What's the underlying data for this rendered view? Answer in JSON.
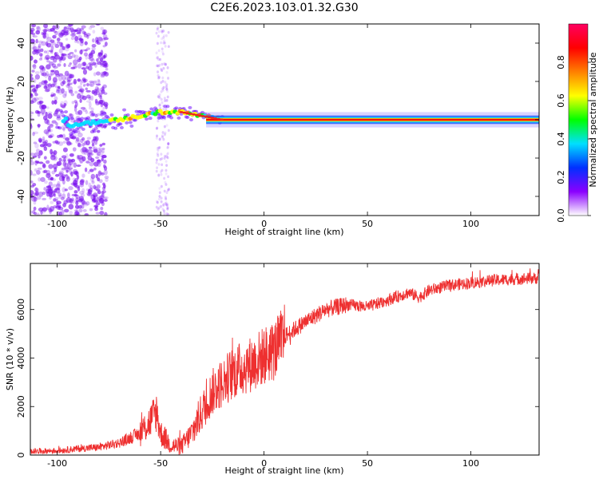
{
  "title": "C2E6.2023.103.01.32.G30",
  "chart_data": [
    {
      "type": "heatmap",
      "xlabel": "Height of straight line (km)",
      "ylabel": "Frequency (Hz)",
      "xlim": [
        -113,
        133
      ],
      "ylim": [
        -50,
        50
      ],
      "xticks": [
        -100,
        -50,
        0,
        50,
        100
      ],
      "yticks": [
        -40,
        -20,
        0,
        20,
        40
      ],
      "colorbar": {
        "label": "Normalized spectral amplitude",
        "range": [
          0,
          1
        ],
        "ticks": [
          0.0,
          0.2,
          0.4,
          0.6,
          0.8
        ],
        "colors": [
          "#ffffff",
          "#8a00ff",
          "#0030ff",
          "#00e0ff",
          "#00ff00",
          "#ffff00",
          "#ff8000",
          "#ff0000",
          "#ff0060"
        ]
      },
      "ridge": [
        {
          "x": -95,
          "y": -3
        },
        {
          "x": -80,
          "y": -1
        },
        {
          "x": -70,
          "y": 0
        },
        {
          "x": -60,
          "y": 2
        },
        {
          "x": -50,
          "y": 4
        },
        {
          "x": -40,
          "y": 4
        },
        {
          "x": -30,
          "y": 2
        },
        {
          "x": -20,
          "y": 0
        },
        {
          "x": 0,
          "y": 0
        },
        {
          "x": 133,
          "y": 0
        }
      ],
      "noise_region": {
        "x_from": -113,
        "x_to": -76,
        "strip_x_from": -52,
        "strip_x_to": -46
      }
    },
    {
      "type": "line",
      "xlabel": "Height of straight line (km)",
      "ylabel": "SNR (10 * v/v)",
      "xlim": [
        -113,
        133
      ],
      "ylim": [
        0,
        7900
      ],
      "xticks": [
        -100,
        -50,
        0,
        50,
        100
      ],
      "yticks": [
        0,
        2000,
        4000,
        6000
      ],
      "color": "#ee3030",
      "series": [
        {
          "x": [
            -113,
            -100,
            -90,
            -80,
            -70,
            -65,
            -60,
            -55,
            -52,
            -50,
            -45,
            -40,
            -35,
            -30,
            -25,
            -20,
            -15,
            -10,
            -5,
            0,
            5,
            10,
            20,
            30,
            40,
            50,
            60,
            70,
            75,
            80,
            90,
            100,
            110,
            120,
            133
          ],
          "y": [
            150,
            180,
            260,
            320,
            500,
            700,
            900,
            1400,
            1800,
            900,
            400,
            350,
            900,
            1800,
            2600,
            3000,
            3400,
            3600,
            3800,
            4100,
            4300,
            4900,
            5500,
            6000,
            6200,
            6100,
            6400,
            6700,
            6500,
            6800,
            7000,
            7100,
            7200,
            7250,
            7300
          ]
        }
      ]
    }
  ]
}
